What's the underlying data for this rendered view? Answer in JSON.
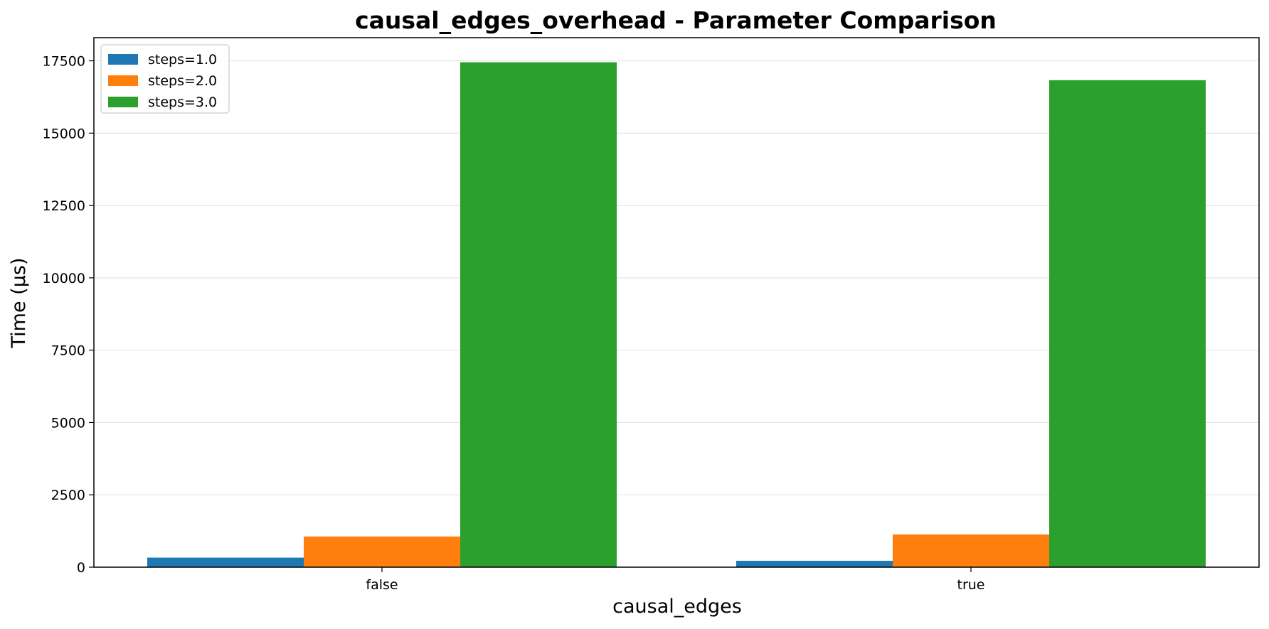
{
  "chart_data": {
    "type": "bar",
    "title": "causal_edges_overhead - Parameter Comparison",
    "xlabel": "causal_edges",
    "ylabel": "Time (µs)",
    "categories": [
      "false",
      "true"
    ],
    "series": [
      {
        "name": "steps=1.0",
        "color": "#1f77b4",
        "values": [
          330,
          220
        ]
      },
      {
        "name": "steps=2.0",
        "color": "#ff7f0e",
        "values": [
          1060,
          1130
        ]
      },
      {
        "name": "steps=3.0",
        "color": "#2ca02c",
        "values": [
          17450,
          16830
        ]
      }
    ],
    "ylim": [
      0,
      18300
    ],
    "yticks": [
      0,
      2500,
      5000,
      7500,
      10000,
      12500,
      15000,
      17500
    ],
    "grid": "y",
    "legend_position": "top-left"
  }
}
